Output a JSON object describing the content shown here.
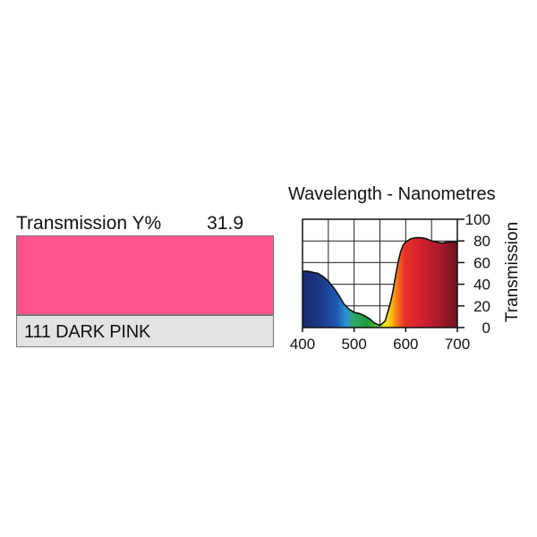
{
  "filter": {
    "transmission_label": "Transmission Y%",
    "transmission_value": "31.9",
    "name": "111 DARK PINK",
    "swatch_color": "#fd548c"
  },
  "chart_data": {
    "type": "area",
    "title": "Wavelength - Nanometres",
    "xlabel": "",
    "ylabel": "Transmission",
    "xlim": [
      400,
      700
    ],
    "ylim": [
      0,
      100
    ],
    "grid": true,
    "xticks": [
      "400",
      "500",
      "600",
      "700"
    ],
    "yticks": [
      "0",
      "20",
      "40",
      "60",
      "80",
      "100"
    ],
    "fill": "visible-spectrum colour gradient",
    "series": [
      {
        "x": [
          400,
          410,
          420,
          430,
          440,
          450,
          460,
          470,
          480,
          490,
          500,
          510,
          520,
          530,
          540,
          550,
          560,
          570,
          575,
          580,
          585,
          590,
          595,
          600,
          610,
          620,
          630,
          640,
          650,
          660,
          670,
          680,
          690,
          700
        ],
        "values": [
          52,
          52,
          51,
          50,
          47,
          43,
          37,
          30,
          22,
          17,
          14,
          13,
          11,
          8,
          4,
          2,
          6,
          22,
          33,
          47,
          60,
          70,
          76,
          79,
          82,
          83,
          83,
          82,
          80,
          79,
          78,
          79,
          79,
          79
        ]
      }
    ]
  }
}
